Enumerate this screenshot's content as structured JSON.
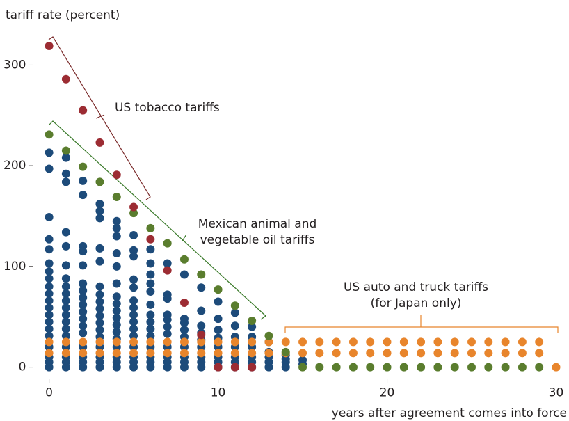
{
  "chart_data": {
    "type": "scatter",
    "y_label": "tariff rate (percent)",
    "x_label": "years after agreement comes into force",
    "xlim": [
      -0.95,
      30.7
    ],
    "ylim": [
      -11.7,
      329.7
    ],
    "xticks": [
      0,
      10,
      20,
      30
    ],
    "yticks": [
      0,
      100,
      200,
      300
    ],
    "grid": false,
    "annotations": [
      [
        "US tobacco tariffs"
      ],
      [
        "Mexican animal and",
        "vegetable oil tariffs"
      ],
      [
        "US auto and truck tariffs",
        "(for Japan only)"
      ]
    ],
    "series": [
      {
        "color": "#1d4b7a",
        "x": [
          0,
          0,
          0,
          0,
          0,
          0,
          0,
          0,
          0,
          0,
          0,
          0,
          0,
          0,
          0,
          0,
          0,
          0,
          0,
          0,
          1,
          1,
          1,
          1,
          1,
          1,
          1,
          1,
          1,
          1,
          1,
          1,
          1,
          1,
          1,
          1,
          1,
          1,
          1,
          2,
          2,
          2,
          2,
          2,
          2,
          2,
          2,
          2,
          2,
          2,
          2,
          2,
          2,
          2,
          2,
          2,
          3,
          3,
          3,
          3,
          3,
          3,
          3,
          3,
          3,
          3,
          3,
          3,
          3,
          3,
          3,
          3,
          3,
          4,
          4,
          4,
          4,
          4,
          4,
          4,
          4,
          4,
          4,
          4,
          4,
          4,
          4,
          4,
          4,
          4,
          5,
          5,
          5,
          5,
          5,
          5,
          5,
          5,
          5,
          5,
          5,
          5,
          5,
          5,
          5,
          6,
          6,
          6,
          6,
          6,
          6,
          6,
          6,
          6,
          6,
          6,
          6,
          6,
          6,
          7,
          7,
          7,
          7,
          7,
          7,
          7,
          7,
          7,
          7,
          7,
          8,
          8,
          8,
          8,
          8,
          8,
          8,
          8,
          8,
          9,
          9,
          9,
          9,
          9,
          9,
          9,
          9,
          9,
          10,
          10,
          10,
          10,
          10,
          10,
          10,
          10,
          11,
          11,
          11,
          11,
          11,
          11,
          11,
          12,
          12,
          12,
          12,
          12,
          12,
          13,
          13,
          13,
          13,
          13,
          14,
          14,
          14,
          14,
          15,
          15
        ],
        "values": [
          213,
          197,
          149,
          127,
          117,
          103,
          95,
          88,
          80,
          73,
          66,
          59,
          52,
          45,
          38,
          31,
          20,
          10,
          5,
          0,
          208,
          192,
          184,
          134,
          120,
          101,
          88,
          80,
          73,
          66,
          59,
          52,
          45,
          38,
          31,
          20,
          10,
          5,
          0,
          185,
          171,
          120,
          115,
          101,
          83,
          76,
          69,
          62,
          55,
          48,
          41,
          34,
          20,
          10,
          5,
          0,
          162,
          155,
          148,
          118,
          105,
          80,
          72,
          65,
          58,
          51,
          44,
          37,
          30,
          20,
          10,
          5,
          0,
          145,
          138,
          130,
          113,
          100,
          83,
          70,
          63,
          56,
          49,
          42,
          35,
          28,
          20,
          10,
          5,
          0,
          131,
          116,
          110,
          87,
          79,
          66,
          59,
          52,
          45,
          38,
          31,
          20,
          10,
          5,
          0,
          117,
          103,
          92,
          83,
          75,
          62,
          52,
          45,
          38,
          31,
          20,
          10,
          5,
          0,
          103,
          72,
          68,
          52,
          47,
          40,
          33,
          20,
          10,
          5,
          0,
          92,
          48,
          44,
          37,
          30,
          20,
          10,
          5,
          0,
          79,
          56,
          41,
          34,
          27,
          20,
          10,
          5,
          0,
          65,
          48,
          37,
          29,
          20,
          10,
          5,
          0,
          54,
          41,
          30,
          20,
          10,
          5,
          0,
          40,
          30,
          20,
          10,
          5,
          0,
          25,
          15,
          10,
          5,
          0,
          12,
          8,
          5,
          0,
          7,
          3
        ]
      },
      {
        "color": "#e8852c",
        "x": [
          0,
          1,
          2,
          3,
          4,
          5,
          6,
          7,
          8,
          9,
          10,
          11,
          12,
          13,
          14,
          15,
          16,
          17,
          18,
          19,
          20,
          21,
          22,
          23,
          24,
          25,
          26,
          27,
          28,
          29,
          0,
          1,
          2,
          3,
          4,
          5,
          6,
          7,
          8,
          9,
          10,
          11,
          12,
          13,
          14,
          15,
          16,
          17,
          18,
          19,
          20,
          21,
          22,
          23,
          24,
          25,
          26,
          27,
          28,
          29,
          30
        ],
        "values": [
          25,
          25,
          25,
          25,
          25,
          25,
          25,
          25,
          25,
          25,
          25,
          25,
          25,
          25,
          25,
          25,
          25,
          25,
          25,
          25,
          25,
          25,
          25,
          25,
          25,
          25,
          25,
          25,
          25,
          25,
          14,
          14,
          14,
          14,
          14,
          14,
          14,
          14,
          14,
          14,
          14,
          14,
          14,
          14,
          14,
          14,
          14,
          14,
          14,
          14,
          14,
          14,
          14,
          14,
          14,
          14,
          14,
          14,
          14,
          14,
          0
        ]
      },
      {
        "color": "#5a7d2e",
        "x": [
          0,
          1,
          2,
          3,
          4,
          5,
          6,
          7,
          8,
          9,
          10,
          11,
          12,
          13,
          14,
          15,
          16,
          17,
          18,
          19,
          20,
          21,
          22,
          23,
          24,
          25,
          26,
          27,
          28,
          29
        ],
        "values": [
          231,
          215,
          199,
          184,
          169,
          153,
          138,
          123,
          107,
          92,
          77,
          61,
          46,
          31,
          15,
          0,
          0,
          0,
          0,
          0,
          0,
          0,
          0,
          0,
          0,
          0,
          0,
          0,
          0,
          0
        ]
      },
      {
        "color": "#9c2c33",
        "x": [
          0,
          1,
          2,
          3,
          4,
          5,
          6,
          7,
          8,
          9,
          10,
          11,
          12
        ],
        "values": [
          319,
          286,
          255,
          223,
          191,
          159,
          127,
          96,
          64,
          32,
          0,
          0,
          0
        ]
      }
    ]
  }
}
